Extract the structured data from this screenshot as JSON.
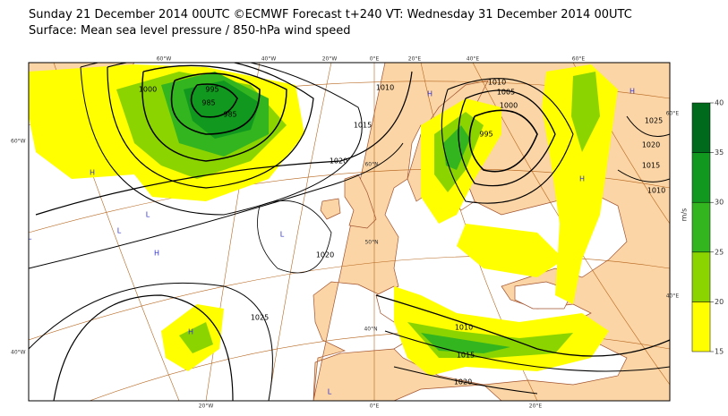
{
  "header": {
    "line1": "Sunday 21 December 2014 00UTC ©ECMWF Forecast t+240 VT: Wednesday 31 December 2014 00UTC",
    "line2": "Surface: Mean sea level pressure / 850-hPa wind speed"
  },
  "colorbar": {
    "ticks": [
      15,
      20,
      25,
      30,
      35,
      40
    ],
    "unit": "m/s",
    "colors": [
      "#ffff00",
      "#8cd400",
      "#33b51f",
      "#11981f",
      "#006a1c"
    ]
  },
  "graticule_labels": [
    "60°W",
    "40°W",
    "20°W",
    "0°E",
    "20°E",
    "40°E",
    "60°E",
    "20°W",
    "0°E",
    "20°E",
    "60°W",
    "40°W",
    "60°E",
    "40°E",
    "60°N",
    "50°N",
    "40°N"
  ],
  "isobar_labels": [
    1000,
    995,
    985,
    985,
    1010,
    1015,
    1020,
    1020,
    1025,
    1010,
    1005,
    1000,
    995,
    1025,
    1020,
    1015,
    1010,
    1010,
    1015,
    1020
  ],
  "pressure_centers": [
    "H",
    "L",
    "H",
    "L",
    "H",
    "L",
    "H",
    "L",
    "H",
    "H",
    "L"
  ]
}
